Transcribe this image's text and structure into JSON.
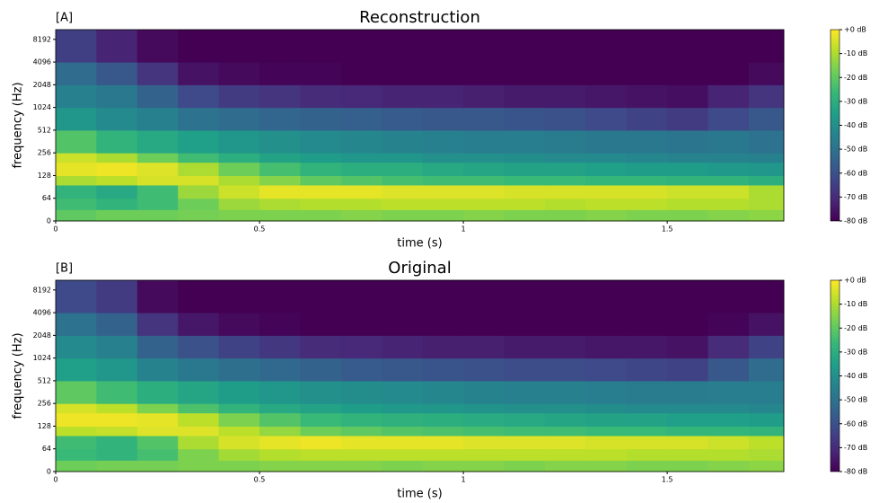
{
  "chart_data": [
    {
      "type": "heatmap",
      "panel_label": "[A]",
      "title": "Reconstruction",
      "x_label": "time (s)",
      "y_label": "frequency (Hz)",
      "xlim": [
        0,
        1.786
      ],
      "xticks": [
        0,
        0.5,
        1,
        1.5
      ],
      "ylim": [
        0,
        11025
      ],
      "yticks": [
        0,
        64,
        128,
        256,
        512,
        1024,
        2048,
        4096,
        8192
      ],
      "yscale": "symlog",
      "linthresh": 64,
      "x_edges": [
        0,
        0.1,
        0.2,
        0.3,
        0.4,
        0.5,
        0.6,
        0.7,
        0.8,
        0.9,
        1.0,
        1.1,
        1.2,
        1.3,
        1.4,
        1.5,
        1.6,
        1.7,
        1.786
      ],
      "y_edges": [
        0,
        32,
        64,
        96,
        128,
        192,
        256,
        512,
        1024,
        2048,
        4096,
        11025
      ],
      "z": [
        [
          -20,
          -18,
          -18,
          -17,
          -16,
          -16,
          -16,
          -15,
          -16,
          -16,
          -15,
          -16,
          -16,
          -15,
          -16,
          -16,
          -15,
          -14
        ],
        [
          -25,
          -28,
          -25,
          -18,
          -12,
          -10,
          -9,
          -9,
          -8,
          -8,
          -8,
          -8,
          -9,
          -8,
          -8,
          -9,
          -9,
          -10
        ],
        [
          -28,
          -32,
          -25,
          -12,
          -6,
          -3,
          -3,
          -3,
          -4,
          -4,
          -4,
          -5,
          -5,
          -5,
          -5,
          -6,
          -6,
          -10
        ],
        [
          -10,
          -8,
          -5,
          -5,
          -10,
          -15,
          -20,
          -22,
          -24,
          -25,
          -25,
          -26,
          -26,
          -27,
          -27,
          -28,
          -28,
          -30
        ],
        [
          -3,
          -2,
          -4,
          -10,
          -18,
          -24,
          -28,
          -30,
          -30,
          -32,
          -33,
          -34,
          -34,
          -35,
          -36,
          -36,
          -37,
          -38
        ],
        [
          -6,
          -10,
          -18,
          -25,
          -30,
          -34,
          -36,
          -38,
          -38,
          -40,
          -40,
          -41,
          -42,
          -42,
          -43,
          -44,
          -44,
          -45
        ],
        [
          -22,
          -28,
          -32,
          -35,
          -38,
          -40,
          -42,
          -43,
          -44,
          -45,
          -46,
          -46,
          -47,
          -48,
          -48,
          -49,
          -48,
          -50
        ],
        [
          -38,
          -42,
          -45,
          -50,
          -52,
          -54,
          -55,
          -56,
          -57,
          -58,
          -58,
          -59,
          -60,
          -62,
          -64,
          -66,
          -62,
          -58
        ],
        [
          -45,
          -48,
          -55,
          -62,
          -66,
          -68,
          -70,
          -71,
          -72,
          -72,
          -73,
          -74,
          -74,
          -75,
          -76,
          -77,
          -72,
          -68
        ],
        [
          -52,
          -58,
          -68,
          -76,
          -78,
          -79,
          -79,
          -80,
          -80,
          -80,
          -80,
          -80,
          -80,
          -80,
          -80,
          -80,
          -80,
          -78
        ],
        [
          -65,
          -72,
          -78,
          -80,
          -80,
          -80,
          -80,
          -80,
          -80,
          -80,
          -80,
          -80,
          -80,
          -80,
          -80,
          -80,
          -80,
          -80
        ]
      ],
      "colormap": [
        "#440154",
        "#482878",
        "#3e4989",
        "#31688e",
        "#26828e",
        "#1f9e89",
        "#35b779",
        "#6ece58",
        "#b5de2b",
        "#fde725"
      ],
      "colorbar": {
        "lim": [
          -80,
          0
        ],
        "ticks": [
          {
            "value": 0,
            "label": "+0 dB"
          },
          {
            "value": -10,
            "label": "-10 dB"
          },
          {
            "value": -20,
            "label": "-20 dB"
          },
          {
            "value": -30,
            "label": "-30 dB"
          },
          {
            "value": -40,
            "label": "-40 dB"
          },
          {
            "value": -50,
            "label": "-50 dB"
          },
          {
            "value": -60,
            "label": "-60 dB"
          },
          {
            "value": -70,
            "label": "-70 dB"
          },
          {
            "value": -80,
            "label": "-80 dB"
          }
        ]
      }
    },
    {
      "type": "heatmap",
      "panel_label": "[B]",
      "title": "Original",
      "x_label": "time (s)",
      "y_label": "frequency (Hz)",
      "xlim": [
        0,
        1.786
      ],
      "xticks": [
        0,
        0.5,
        1,
        1.5
      ],
      "ylim": [
        0,
        11025
      ],
      "yticks": [
        0,
        64,
        128,
        256,
        512,
        1024,
        2048,
        4096,
        8192
      ],
      "yscale": "symlog",
      "linthresh": 64,
      "x_edges": [
        0,
        0.1,
        0.2,
        0.3,
        0.4,
        0.5,
        0.6,
        0.7,
        0.8,
        0.9,
        1.0,
        1.1,
        1.2,
        1.3,
        1.4,
        1.5,
        1.6,
        1.7,
        1.786
      ],
      "y_edges": [
        0,
        32,
        64,
        96,
        128,
        192,
        256,
        512,
        1024,
        2048,
        4096,
        11025
      ],
      "z": [
        [
          -18,
          -17,
          -17,
          -16,
          -16,
          -15,
          -15,
          -15,
          -16,
          -15,
          -15,
          -16,
          -15,
          -15,
          -16,
          -16,
          -15,
          -14
        ],
        [
          -26,
          -28,
          -24,
          -16,
          -11,
          -9,
          -8,
          -8,
          -8,
          -8,
          -8,
          -8,
          -8,
          -8,
          -9,
          -9,
          -9,
          -10
        ],
        [
          -25,
          -28,
          -22,
          -10,
          -5,
          -3,
          -2,
          -3,
          -3,
          -3,
          -4,
          -4,
          -4,
          -5,
          -5,
          -5,
          -6,
          -8
        ],
        [
          -8,
          -7,
          -4,
          -4,
          -8,
          -13,
          -18,
          -20,
          -22,
          -23,
          -24,
          -25,
          -25,
          -26,
          -26,
          -27,
          -27,
          -28
        ],
        [
          -2,
          -2,
          -3,
          -8,
          -16,
          -22,
          -26,
          -28,
          -29,
          -30,
          -31,
          -32,
          -33,
          -34,
          -34,
          -35,
          -35,
          -36
        ],
        [
          -5,
          -8,
          -16,
          -23,
          -28,
          -32,
          -34,
          -36,
          -37,
          -38,
          -39,
          -40,
          -40,
          -41,
          -42,
          -42,
          -42,
          -43
        ],
        [
          -20,
          -25,
          -30,
          -33,
          -36,
          -38,
          -40,
          -41,
          -42,
          -43,
          -44,
          -45,
          -45,
          -46,
          -47,
          -47,
          -46,
          -46
        ],
        [
          -35,
          -38,
          -44,
          -48,
          -51,
          -53,
          -55,
          -57,
          -58,
          -59,
          -60,
          -61,
          -61,
          -62,
          -63,
          -64,
          -58,
          -52
        ],
        [
          -42,
          -45,
          -55,
          -60,
          -64,
          -67,
          -70,
          -71,
          -72,
          -73,
          -73,
          -74,
          -74,
          -75,
          -75,
          -76,
          -70,
          -64
        ],
        [
          -50,
          -55,
          -68,
          -75,
          -78,
          -79,
          -80,
          -80,
          -80,
          -80,
          -80,
          -80,
          -80,
          -80,
          -80,
          -80,
          -79,
          -76
        ],
        [
          -62,
          -66,
          -78,
          -80,
          -80,
          -80,
          -80,
          -80,
          -80,
          -80,
          -80,
          -80,
          -80,
          -80,
          -80,
          -80,
          -80,
          -80
        ]
      ],
      "colormap": [
        "#440154",
        "#482878",
        "#3e4989",
        "#31688e",
        "#26828e",
        "#1f9e89",
        "#35b779",
        "#6ece58",
        "#b5de2b",
        "#fde725"
      ],
      "colorbar": {
        "lim": [
          -80,
          0
        ],
        "ticks": [
          {
            "value": 0,
            "label": "+0 dB"
          },
          {
            "value": -10,
            "label": "-10 dB"
          },
          {
            "value": -20,
            "label": "-20 dB"
          },
          {
            "value": -30,
            "label": "-30 dB"
          },
          {
            "value": -40,
            "label": "-40 dB"
          },
          {
            "value": -50,
            "label": "-50 dB"
          },
          {
            "value": -60,
            "label": "-60 dB"
          },
          {
            "value": -70,
            "label": "-70 dB"
          },
          {
            "value": -80,
            "label": "-80 dB"
          }
        ]
      }
    }
  ]
}
